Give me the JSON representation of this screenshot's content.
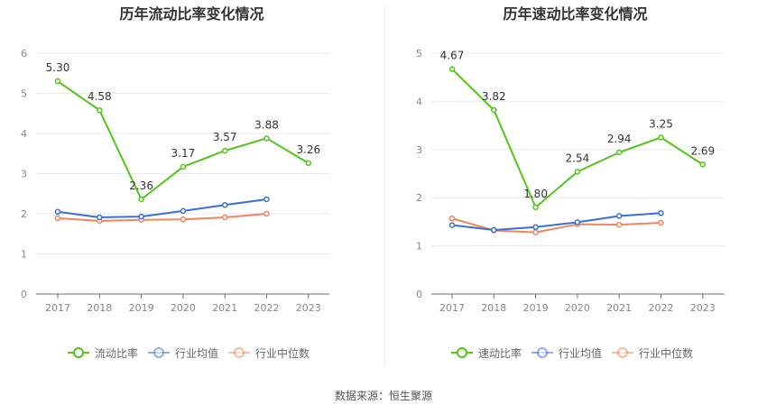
{
  "charts": [
    {
      "title": "历年流动比率变化情况",
      "chart_data": {
        "type": "line",
        "title": "历年流动比率变化情况",
        "categories": [
          "2017",
          "2018",
          "2019",
          "2020",
          "2021",
          "2022",
          "2023"
        ],
        "ylim": [
          0,
          6
        ],
        "yticks": [
          0,
          1,
          2,
          3,
          4,
          5,
          6
        ],
        "series": [
          {
            "name": "流动比率",
            "color": "#52c41a",
            "values": [
              5.3,
              4.58,
              2.36,
              3.17,
              3.57,
              3.88,
              3.26
            ],
            "labels": [
              "5.30",
              "4.58",
              "2.36",
              "3.17",
              "3.57",
              "3.88",
              "3.26"
            ],
            "show_labels": true
          },
          {
            "name": "行业均值",
            "color": "#3a6fd8",
            "values": [
              2.05,
              1.91,
              1.93,
              2.07,
              2.22,
              2.36,
              null
            ],
            "show_labels": false
          },
          {
            "name": "行业中位数",
            "color": "#f0845c",
            "values": [
              1.89,
              1.82,
              1.85,
              1.86,
              1.91,
              2.0,
              null
            ],
            "show_labels": false
          }
        ]
      }
    },
    {
      "title": "历年速动比率变化情况",
      "chart_data": {
        "type": "line",
        "title": "历年速动比率变化情况",
        "categories": [
          "2017",
          "2018",
          "2019",
          "2020",
          "2021",
          "2022",
          "2023"
        ],
        "ylim": [
          0,
          5
        ],
        "yticks": [
          0,
          1,
          2,
          3,
          4,
          5
        ],
        "series": [
          {
            "name": "速动比率",
            "color": "#52c41a",
            "values": [
              4.67,
              3.82,
              1.8,
              2.54,
              2.94,
              3.25,
              2.69
            ],
            "labels": [
              "4.67",
              "3.82",
              "1.80",
              "2.54",
              "2.94",
              "3.25",
              "2.69"
            ],
            "show_labels": true
          },
          {
            "name": "行业均值",
            "color": "#3a6fd8",
            "values": [
              1.43,
              1.33,
              1.39,
              1.49,
              1.62,
              1.68,
              null
            ],
            "show_labels": false
          },
          {
            "name": "行业中位数",
            "color": "#f0845c",
            "values": [
              1.57,
              1.32,
              1.28,
              1.45,
              1.44,
              1.48,
              null
            ],
            "show_labels": false
          }
        ]
      }
    }
  ],
  "source": "数据来源：恒生聚源"
}
